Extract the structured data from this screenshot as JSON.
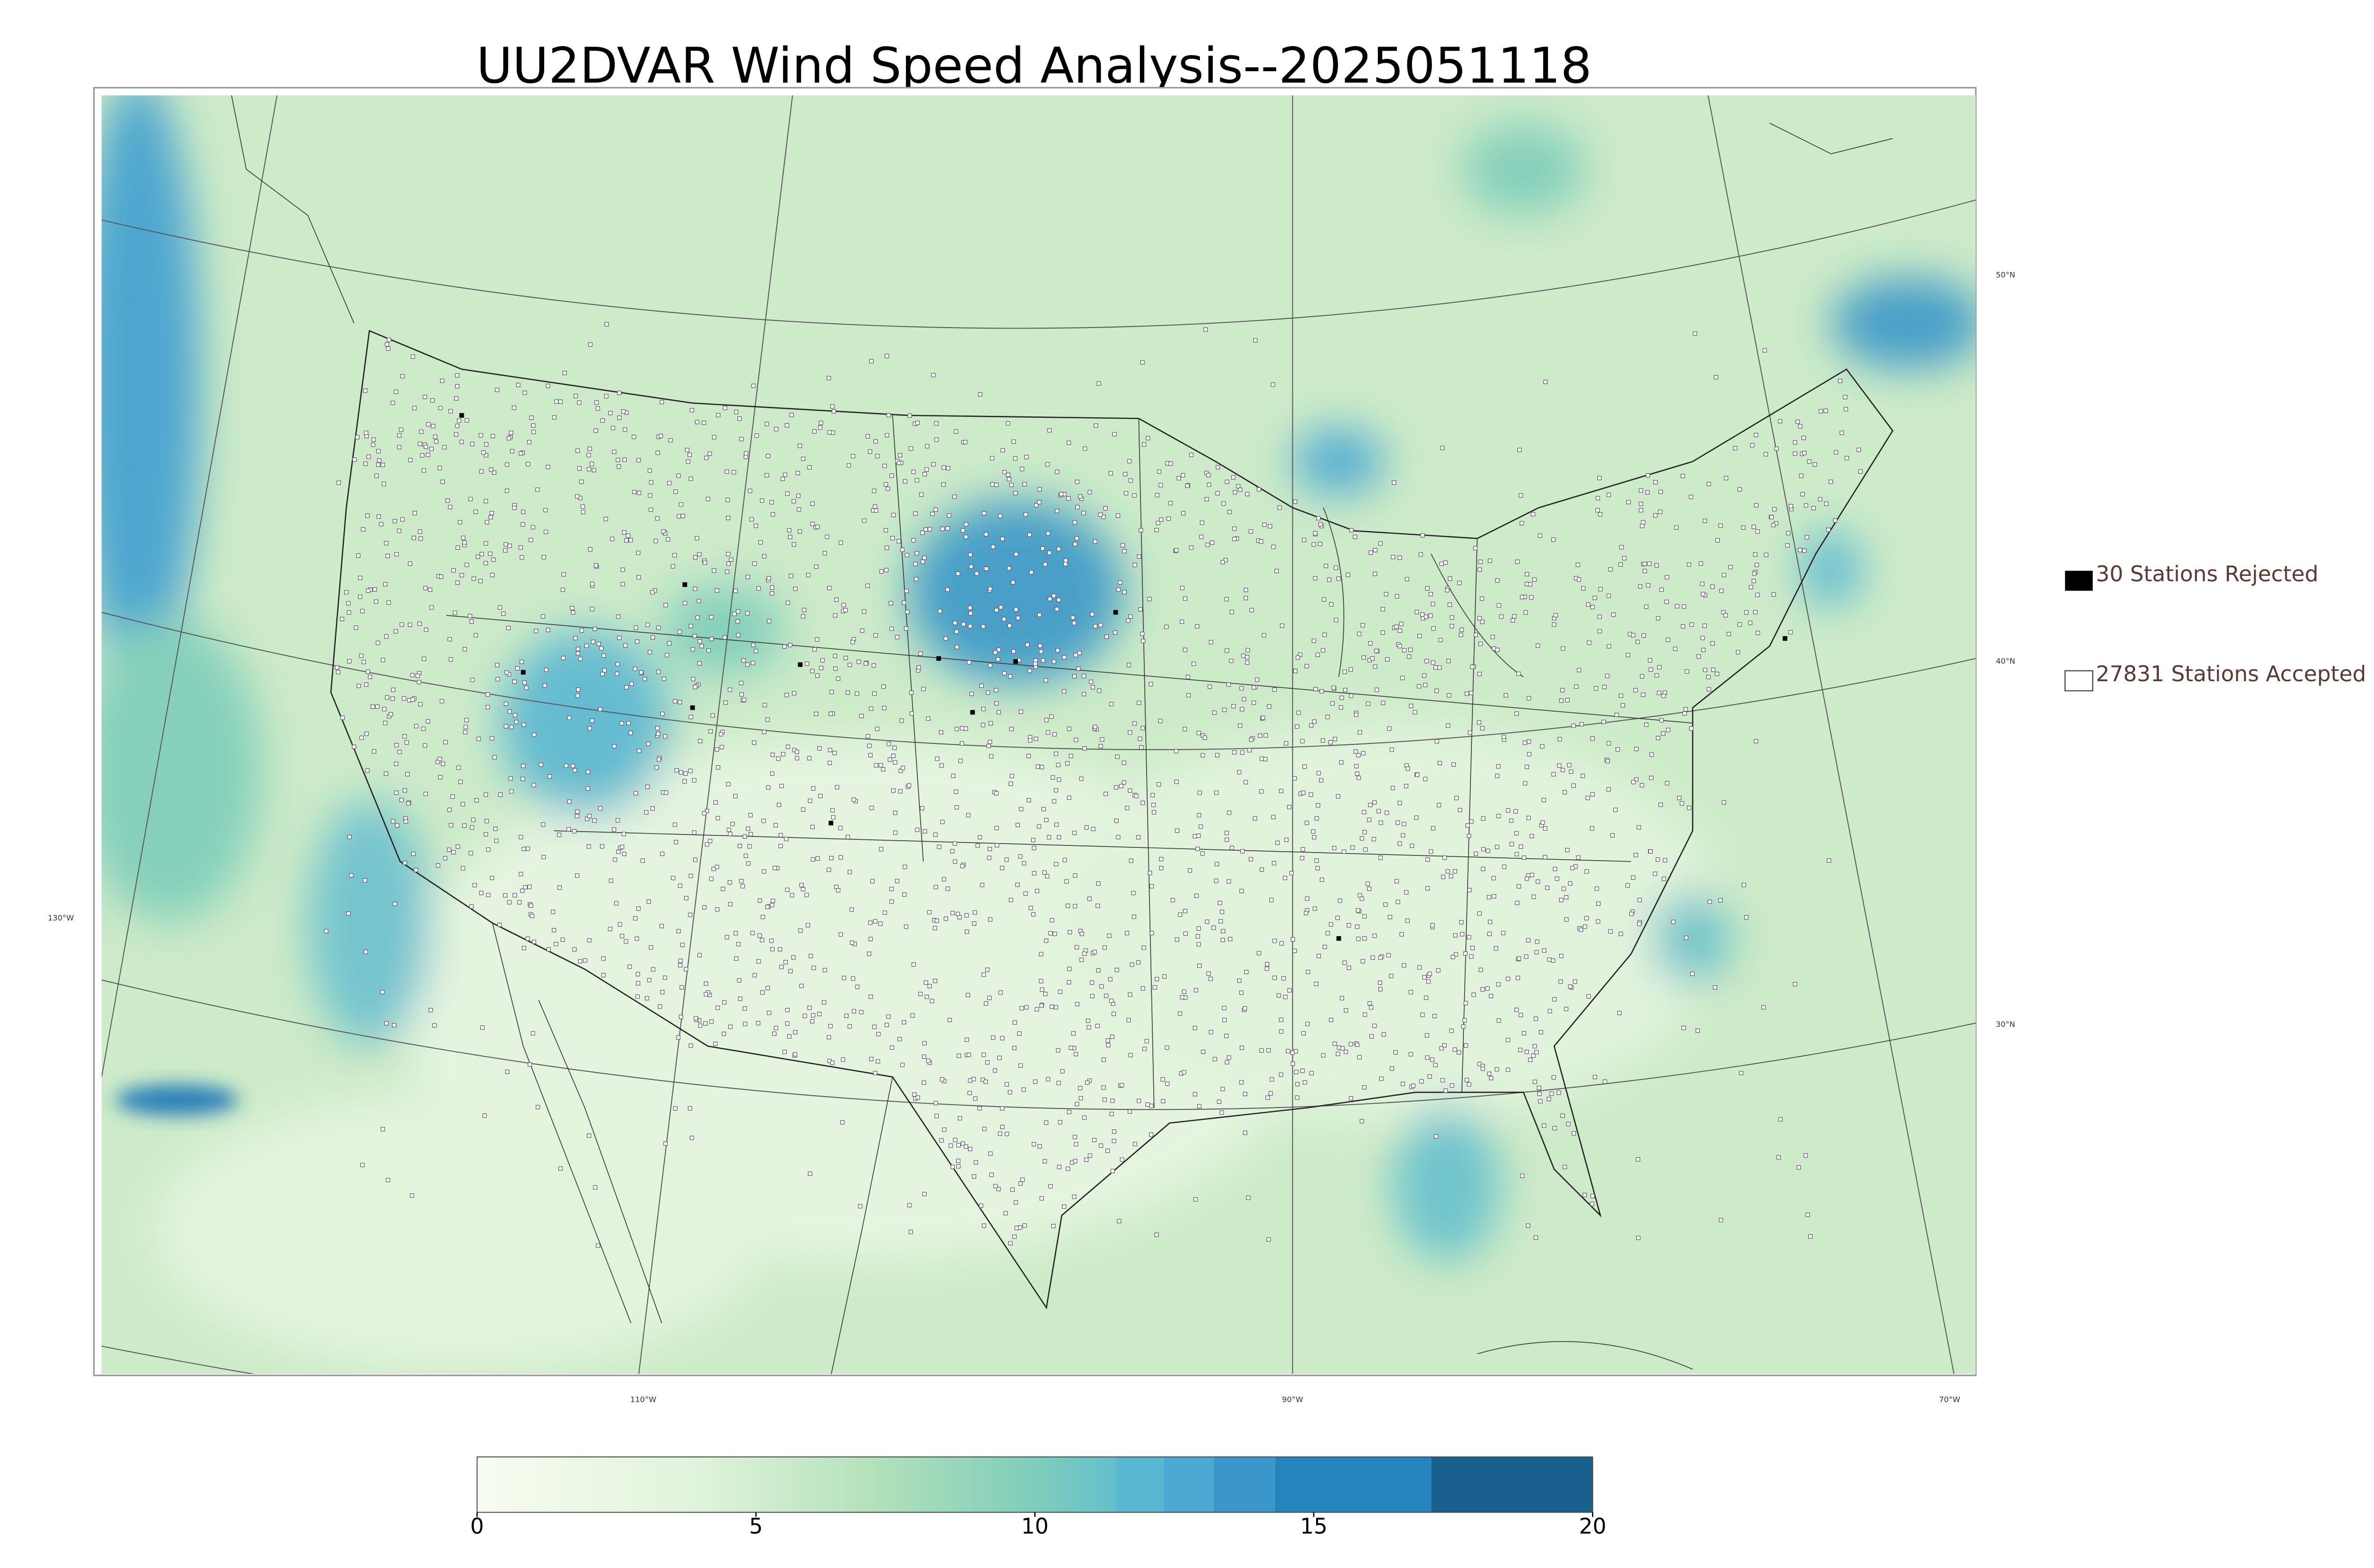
{
  "title": "UU2DVAR Wind Speed Analysis--2025051118",
  "legend": {
    "rejected": "30 Stations Rejected",
    "accepted": "27831 Stations Accepted"
  },
  "graticule": {
    "lat_labels": [
      "50°N",
      "40°N",
      "30°N"
    ],
    "lon_labels": [
      "130°W",
      "110°W",
      "90°W",
      "70°W"
    ]
  },
  "colorbar": {
    "lim": [
      0,
      20
    ],
    "ticks": [
      0,
      5,
      10,
      15,
      20
    ]
  }
}
